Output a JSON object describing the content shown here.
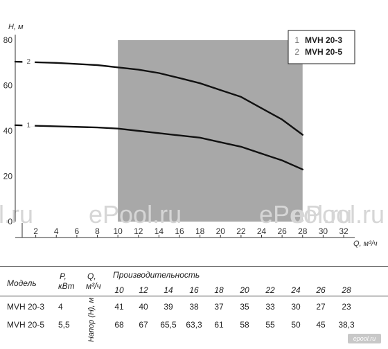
{
  "chart_data": {
    "type": "line",
    "xlabel": "Q, м³/ч",
    "ylabel": "H, м",
    "xlim": [
      0,
      32
    ],
    "ylim": [
      0,
      80
    ],
    "x_ticks": [
      2,
      4,
      6,
      8,
      10,
      12,
      14,
      16,
      18,
      20,
      22,
      24,
      26,
      28,
      30,
      32
    ],
    "y_ticks": [
      0,
      20,
      40,
      60,
      80
    ],
    "shaded_region": [
      10,
      28
    ],
    "legend_position": "top-right",
    "legend": [
      {
        "num": "1",
        "label": "MVH 20-3"
      },
      {
        "num": "2",
        "label": "MVH 20-5"
      }
    ],
    "series": [
      {
        "name": "MVH 20-3",
        "num": "1",
        "x": [
          0,
          4,
          8,
          10,
          12,
          14,
          16,
          18,
          20,
          22,
          24,
          26,
          28
        ],
        "y": [
          42.5,
          42,
          41.5,
          41,
          40,
          39,
          38,
          37,
          35,
          33,
          30,
          27,
          23
        ]
      },
      {
        "name": "MVH 20-5",
        "num": "2",
        "x": [
          0,
          4,
          8,
          10,
          12,
          14,
          16,
          18,
          20,
          22,
          24,
          26,
          28
        ],
        "y": [
          70.5,
          70,
          69,
          68,
          67,
          65.5,
          63.3,
          61,
          58,
          55,
          50,
          45,
          38.3
        ]
      }
    ]
  },
  "watermarks": [
    "l.ru",
    "ePool.ru",
    "ePool.ru",
    "ePool.ru"
  ],
  "table": {
    "col_model": "Модель",
    "col_power": "P,\nкВт",
    "col_flow": "Q,\nм³/ч",
    "col_perf": "Производительность",
    "col_head": "Напор (H), м",
    "flows": [
      "10",
      "12",
      "14",
      "16",
      "18",
      "20",
      "22",
      "24",
      "26",
      "28"
    ],
    "rows": [
      {
        "model": "MVH 20-3",
        "power": "4",
        "values": [
          "41",
          "40",
          "39",
          "38",
          "37",
          "35",
          "33",
          "30",
          "27",
          "23"
        ]
      },
      {
        "model": "MVH 20-5",
        "power": "5,5",
        "values": [
          "68",
          "67",
          "65,5",
          "63,3",
          "61",
          "58",
          "55",
          "50",
          "45",
          "38,3"
        ]
      }
    ]
  },
  "brand": "epool.ru"
}
